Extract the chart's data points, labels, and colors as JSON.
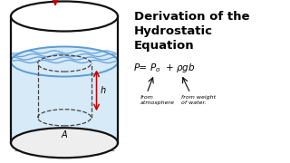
{
  "bg_color": "#ffffff",
  "title_line1": "Derivation of the",
  "title_line2": "Hydrostatic",
  "title_line3": "Equation",
  "title_fontsize": 9.5,
  "ann_fontsize": 4.5,
  "fig_width": 3.2,
  "fig_height": 1.8,
  "dpi": 100,
  "cylinder_color": "#111111",
  "water_blue": "#5b9bd5",
  "water_fill": "#d6eaf8",
  "patm_color": "#cc0000",
  "h_color": "#cc0000",
  "annotation_color": "#222222"
}
